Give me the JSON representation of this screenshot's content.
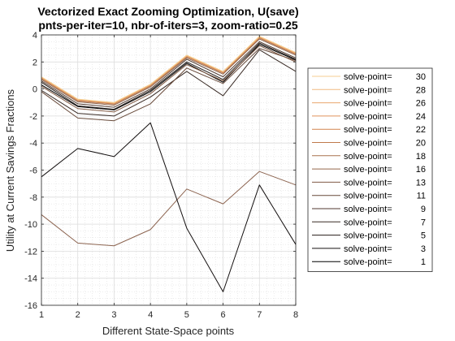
{
  "chart_data": {
    "type": "line",
    "title": "Vectorized Exact Zooming Optimization, U(save)",
    "subtitle": "pnts-per-iter=10, nbr-of-iters=3, zoom-ratio=0.25",
    "xlabel": "Different State-Space points",
    "ylabel": "Utility at Current Savings Fractions",
    "x": [
      1,
      2,
      3,
      4,
      5,
      6,
      7,
      8
    ],
    "xlim": [
      1,
      8
    ],
    "ylim": [
      -16,
      4
    ],
    "xticks": [
      "1",
      "2",
      "3",
      "4",
      "5",
      "6",
      "7",
      "8"
    ],
    "yticks": [
      "-16",
      "-14",
      "-12",
      "-10",
      "-8",
      "-6",
      "-4",
      "-2",
      "0",
      "2",
      "4"
    ],
    "grid": true,
    "minor_grid": true,
    "legend_position": "outside-right",
    "series": [
      {
        "name": "solve-point=    30",
        "color": "#f5ce90",
        "values": [
          0.9,
          -0.75,
          -1.0,
          0.35,
          2.5,
          1.3,
          3.9,
          2.7
        ]
      },
      {
        "name": "solve-point=    28",
        "color": "#f0ba80",
        "values": [
          0.88,
          -0.77,
          -1.02,
          0.33,
          2.48,
          1.28,
          3.88,
          2.68
        ]
      },
      {
        "name": "solve-point=    26",
        "color": "#eaa66e",
        "values": [
          0.86,
          -0.79,
          -1.04,
          0.31,
          2.46,
          1.26,
          3.86,
          2.66
        ]
      },
      {
        "name": "solve-point=    24",
        "color": "#e0925c",
        "values": [
          0.84,
          -0.81,
          -1.06,
          0.29,
          2.44,
          1.24,
          3.84,
          2.64
        ]
      },
      {
        "name": "solve-point=    22",
        "color": "#d2844e",
        "values": [
          0.82,
          -0.83,
          -1.08,
          0.27,
          2.42,
          1.22,
          3.82,
          2.62
        ]
      },
      {
        "name": "solve-point=    20",
        "color": "#c07a4c",
        "values": [
          0.8,
          -0.85,
          -1.1,
          0.25,
          2.4,
          1.2,
          3.8,
          2.6
        ]
      },
      {
        "name": "solve-point=    18",
        "color": "#a8724e",
        "values": [
          0.78,
          -0.87,
          -1.12,
          0.23,
          2.38,
          1.18,
          3.78,
          2.58
        ]
      },
      {
        "name": "solve-point=    16",
        "color": "#95664a",
        "values": [
          0.7,
          -0.95,
          -1.2,
          0.15,
          2.3,
          1.1,
          3.7,
          2.5
        ]
      },
      {
        "name": "solve-point=    13",
        "color": "#805a44",
        "values": [
          0.2,
          -1.45,
          -1.7,
          -0.35,
          1.8,
          0.6,
          3.2,
          2.0
        ]
      },
      {
        "name": "solve-point=    11",
        "color": "#684a3a",
        "values": [
          -0.2,
          -2.15,
          -2.35,
          -1.1,
          1.55,
          0.4,
          3.0,
          2.1
        ]
      },
      {
        "name": "solve-point=     9",
        "color": "#503a30",
        "values": [
          0.6,
          -1.1,
          -1.35,
          0.0,
          2.2,
          0.9,
          3.5,
          2.3
        ]
      },
      {
        "name": "solve-point=     7",
        "color": "#382a24",
        "values": [
          -0.1,
          -1.8,
          -2.0,
          -0.6,
          1.3,
          -0.5,
          2.9,
          1.3
        ]
      },
      {
        "name": "solve-point=     5",
        "color": "#241c18",
        "values": [
          0.5,
          -1.25,
          -1.5,
          -0.1,
          2.0,
          0.7,
          3.4,
          2.2
        ]
      },
      {
        "name": "solve-point=     3",
        "color": "#141010",
        "values": [
          -6.5,
          -4.4,
          -5.0,
          -2.5,
          -10.3,
          -15.0,
          -7.1,
          -11.5
        ]
      },
      {
        "name": "solve-point=     1",
        "color": "#000000",
        "values": [
          0.3,
          -1.3,
          -1.55,
          -0.2,
          1.9,
          0.5,
          3.3,
          2.15
        ]
      },
      {
        "name": "",
        "color": "#8c6450",
        "values": [
          -9.3,
          -11.4,
          -11.6,
          -10.4,
          -7.4,
          -8.5,
          -6.1,
          -7.1
        ]
      }
    ]
  }
}
